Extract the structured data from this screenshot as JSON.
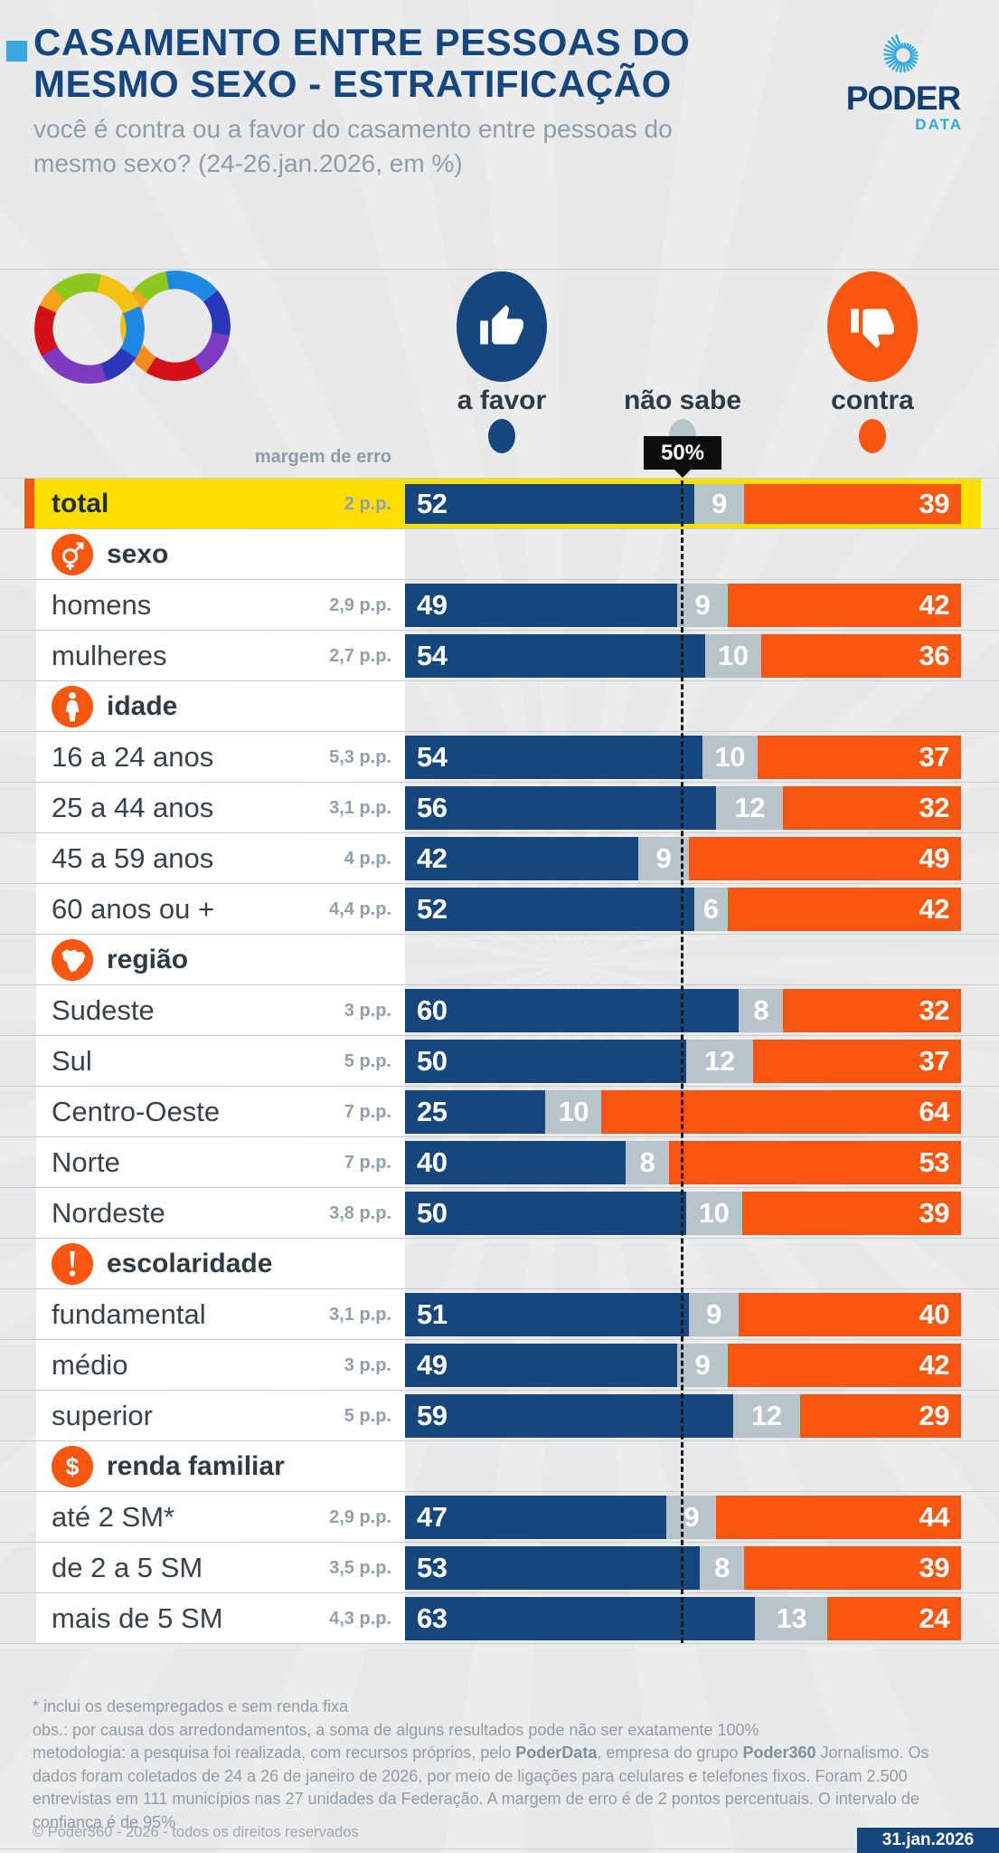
{
  "header": {
    "title_line1": "CASAMENTO ENTRE PESSOAS DO",
    "title_line2": "MESMO SEXO - ESTRATIFICAÇÃO",
    "subtitle": "você é contra ou a favor do casamento entre pessoas do mesmo sexo? (24-26.jan.2026, em %)",
    "logo_name": "PODER",
    "logo_sub": "DATA"
  },
  "legend": {
    "items": [
      {
        "label": "a favor",
        "color": "#15477e",
        "icon": "thumb-up-icon"
      },
      {
        "label": "não sabe",
        "color": "#b8c3ca",
        "icon": null
      },
      {
        "label": "contra",
        "color": "#f95711",
        "icon": "thumb-down-icon"
      }
    ],
    "margin_of_error_header": "margem de erro",
    "reference_marker_label": "50%"
  },
  "colors": {
    "favor": "#15477e",
    "nao_sabe": "#b8c3ca",
    "contra": "#f95711",
    "total_row_bg": "#ffdf00",
    "total_row_accent": "#f95711",
    "title": "#15477e",
    "logo_light_blue": "#2ba9e0",
    "background": "#e8e9ea"
  },
  "chart_data": {
    "type": "bar",
    "stacked": true,
    "orientation": "horizontal",
    "series_names": [
      "a favor",
      "não sabe",
      "contra"
    ],
    "axis": {
      "range": [
        0,
        100
      ],
      "unit": "%",
      "reference_line": 50,
      "grid": false
    },
    "rows": [
      {
        "type": "total",
        "label": "total",
        "moe": "2 p.p.",
        "values": [
          52,
          9,
          39
        ]
      },
      {
        "type": "section",
        "label": "sexo",
        "icon": "gender-icon"
      },
      {
        "type": "data",
        "label": "homens",
        "moe": "2,9 p.p.",
        "values": [
          49,
          9,
          42
        ]
      },
      {
        "type": "data",
        "label": "mulheres",
        "moe": "2,7 p.p.",
        "values": [
          54,
          10,
          36
        ]
      },
      {
        "type": "section",
        "label": "idade",
        "icon": "person-icon"
      },
      {
        "type": "data",
        "label": "16 a 24 anos",
        "moe": "5,3 p.p.",
        "values": [
          54,
          10,
          37
        ]
      },
      {
        "type": "data",
        "label": "25 a 44 anos",
        "moe": "3,1 p.p.",
        "values": [
          56,
          12,
          32
        ]
      },
      {
        "type": "data",
        "label": "45 a 59 anos",
        "moe": "4 p.p.",
        "values": [
          42,
          9,
          49
        ]
      },
      {
        "type": "data",
        "label": "60 anos ou +",
        "moe": "4,4 p.p.",
        "values": [
          52,
          6,
          42
        ]
      },
      {
        "type": "section",
        "label": "região",
        "icon": "brazil-map-icon"
      },
      {
        "type": "data",
        "label": "Sudeste",
        "moe": "3 p.p.",
        "values": [
          60,
          8,
          32
        ]
      },
      {
        "type": "data",
        "label": "Sul",
        "moe": "5 p.p.",
        "values": [
          50,
          12,
          37
        ]
      },
      {
        "type": "data",
        "label": "Centro-Oeste",
        "moe": "7 p.p.",
        "values": [
          25,
          10,
          64
        ]
      },
      {
        "type": "data",
        "label": "Norte",
        "moe": "7 p.p.",
        "values": [
          40,
          8,
          53
        ]
      },
      {
        "type": "data",
        "label": "Nordeste",
        "moe": "3,8 p.p.",
        "values": [
          50,
          10,
          39
        ]
      },
      {
        "type": "section",
        "label": "escolaridade",
        "icon": "exclamation-icon"
      },
      {
        "type": "data",
        "label": "fundamental",
        "moe": "3,1 p.p.",
        "values": [
          51,
          9,
          40
        ]
      },
      {
        "type": "data",
        "label": "médio",
        "moe": "3 p.p.",
        "values": [
          49,
          9,
          42
        ]
      },
      {
        "type": "data",
        "label": "superior",
        "moe": "5 p.p.",
        "values": [
          59,
          12,
          29
        ]
      },
      {
        "type": "section",
        "label": "renda familiar",
        "icon": "dollar-icon"
      },
      {
        "type": "data",
        "label": "até 2 SM*",
        "moe": "2,9 p.p.",
        "values": [
          47,
          9,
          44
        ]
      },
      {
        "type": "data",
        "label": "de 2 a 5 SM",
        "moe": "3,5 p.p.",
        "values": [
          53,
          8,
          39
        ]
      },
      {
        "type": "data",
        "label": "mais de 5 SM",
        "moe": "4,3 p.p.",
        "values": [
          63,
          13,
          24
        ]
      }
    ]
  },
  "footer": {
    "footnote1": "* inclui os desempregados e sem renda fixa",
    "footnote2": "obs.: por causa dos arredondamentos, a soma de alguns resultados pode não ser exatamente 100%",
    "methodology_1": "metodologia: a pesquisa foi realizada, com recursos próprios, pelo ",
    "methodology_bold1": "PoderData",
    "methodology_2": ", empresa do grupo ",
    "methodology_bold2": "Poder360",
    "methodology_3": " Jornalismo. Os dados foram coletados de 24 a 26 de janeiro de 2026, por meio de ligações para celulares e telefones fixos. Foram 2.500 entrevistas em 111 municípios nas 27 unidades da Federação. A margem de erro é de 2 pontos percentuais. O intervalo de confiança é de 95%",
    "copyright": "© Poder360 - 2026 - todos os direitos reservados",
    "date": "31.jan.2026"
  }
}
